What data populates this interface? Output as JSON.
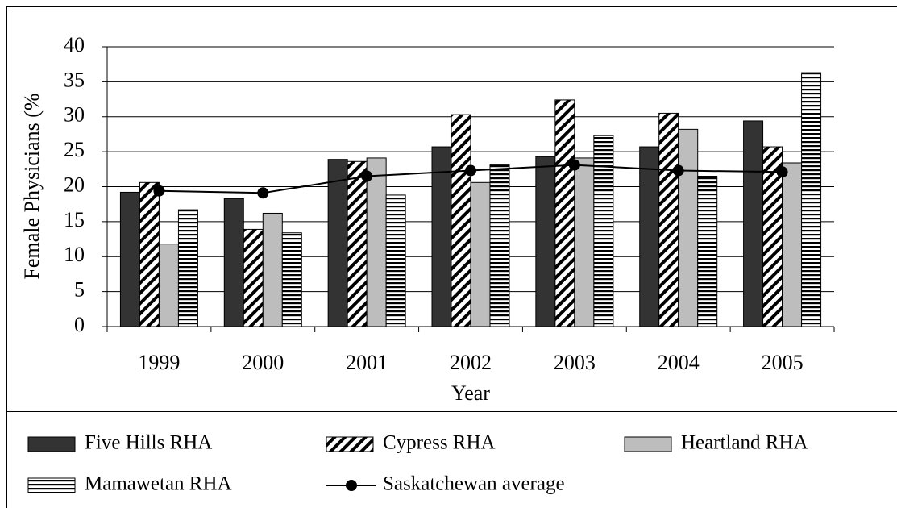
{
  "chart_data": {
    "type": "bar",
    "y_label": "Female Physicians (%",
    "x_label": "Year",
    "categories": [
      "1999",
      "2000",
      "2001",
      "2002",
      "2003",
      "2004",
      "2005"
    ],
    "series": [
      {
        "name": "Five Hills RHA",
        "color": "#333333",
        "pattern": "solid",
        "values": [
          19.2,
          18.3,
          23.9,
          25.7,
          24.3,
          25.7,
          29.4
        ]
      },
      {
        "name": "Cypress RHA",
        "color": "#000000",
        "pattern": "diagonal",
        "values": [
          20.6,
          13.9,
          23.6,
          30.3,
          32.4,
          30.5,
          25.7
        ]
      },
      {
        "name": "Heartland RHA",
        "color": "#bdbdbd",
        "pattern": "solid",
        "values": [
          11.8,
          16.2,
          24.1,
          20.6,
          24.1,
          28.2,
          23.4
        ]
      },
      {
        "name": "Mamawetan RHA",
        "color": "#000000",
        "pattern": "horizontal",
        "values": [
          16.7,
          13.4,
          18.8,
          23.1,
          27.3,
          21.5,
          36.3
        ]
      },
      {
        "name": "Saskatchewan average",
        "color": "#000000",
        "type": "line",
        "values": [
          19.4,
          19.1,
          21.5,
          22.3,
          23.1,
          22.3,
          22.1
        ]
      }
    ],
    "ylim": [
      0,
      40
    ],
    "yticks": [
      0,
      5,
      10,
      15,
      20,
      25,
      30,
      35,
      40
    ],
    "grid": true
  }
}
